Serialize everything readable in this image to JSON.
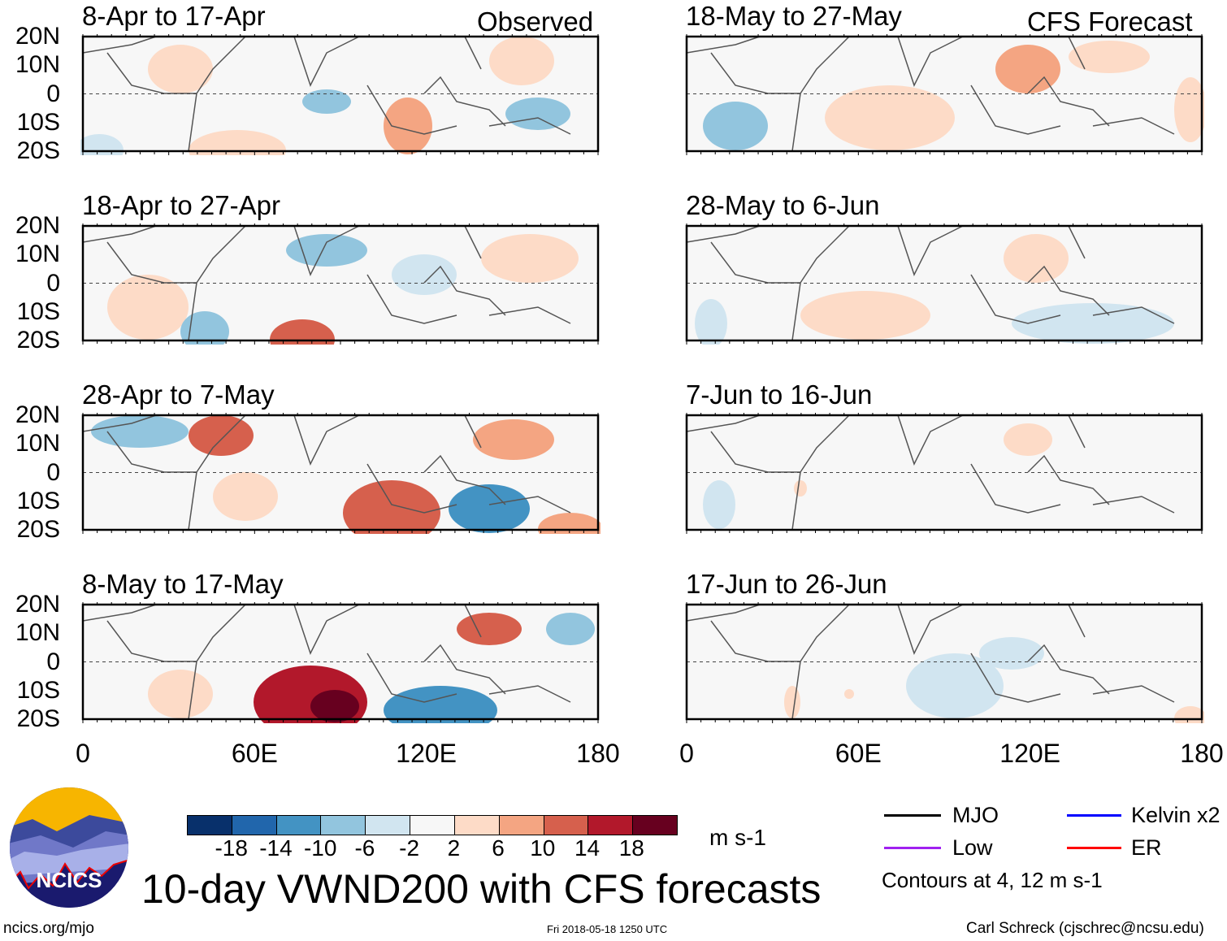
{
  "headers": {
    "observed": "Observed",
    "forecast": "CFS Forecast"
  },
  "panels_observed": [
    {
      "title": "8-Apr to 17-Apr"
    },
    {
      "title": "18-Apr to 27-Apr"
    },
    {
      "title": "28-Apr to 7-May"
    },
    {
      "title": "8-May to 17-May"
    }
  ],
  "panels_forecast": [
    {
      "title": "18-May to 27-May"
    },
    {
      "title": "28-May to 6-Jun"
    },
    {
      "title": "7-Jun to 16-Jun"
    },
    {
      "title": "17-Jun to 26-Jun"
    }
  ],
  "lat_labels": [
    "20N",
    "10N",
    "0",
    "10S",
    "20S"
  ],
  "lon_labels": [
    "0",
    "60E",
    "120E",
    "180"
  ],
  "colorbar": {
    "colors": [
      "#08306b",
      "#2166ac",
      "#4393c3",
      "#92c5de",
      "#d1e5f0",
      "#f7f7f7",
      "#fddbc7",
      "#f4a582",
      "#d6604d",
      "#b2182b",
      "#67001f"
    ],
    "labels": [
      "-18",
      "-14",
      "-10",
      "-6",
      "-2",
      "2",
      "6",
      "10",
      "14",
      "18"
    ],
    "unit": "m s-1"
  },
  "legend": {
    "items": [
      {
        "label": "MJO",
        "color": "#000000"
      },
      {
        "label": "Low",
        "color": "#a020f0"
      },
      {
        "label": "Kelvin x2",
        "color": "#0000ff"
      },
      {
        "label": "ER",
        "color": "#ff0000"
      }
    ],
    "contours_note": "Contours at 4, 12 m s-1"
  },
  "logo": {
    "text": "NCICS"
  },
  "title": "10-day VWND200 with CFS forecasts",
  "footer": {
    "url": "ncics.org/mjo",
    "timestamp": "Fri 2018-05-18 1250 UTC",
    "credit": "Carl Schreck (cjschrec@ncsu.edu)"
  }
}
